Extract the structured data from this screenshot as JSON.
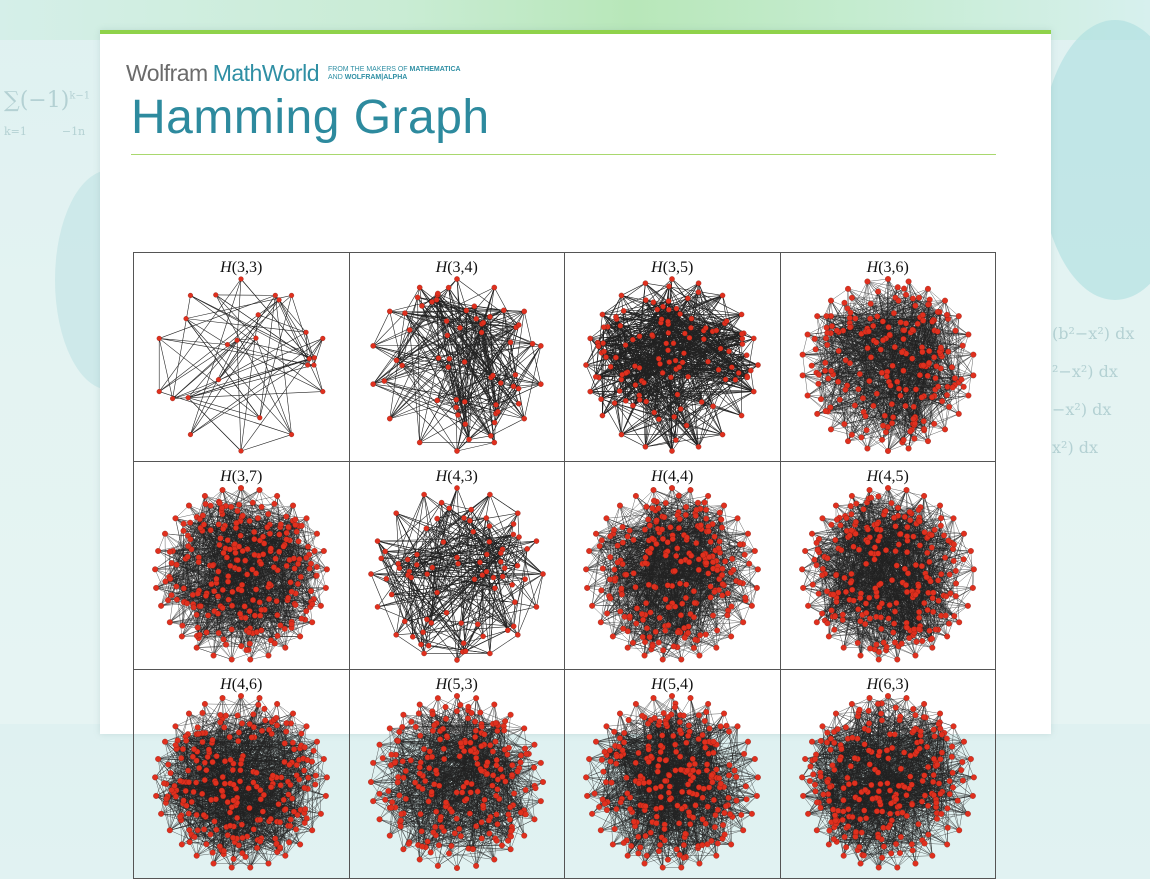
{
  "brand": {
    "wolfram": "Wolfram",
    "mathworld": "MathWorld",
    "tag_line1_pre": "FROM THE MAKERS OF ",
    "tag_line1_bold": "MATHEMATICA",
    "tag_line2_pre": "AND ",
    "tag_line2_bold": "WOLFRAM|ALPHA"
  },
  "page": {
    "title": "Hamming Graph"
  },
  "graphs": [
    {
      "name": "H",
      "args": "(3,3)",
      "d": 3,
      "q": 3
    },
    {
      "name": "H",
      "args": "(3,4)",
      "d": 3,
      "q": 4
    },
    {
      "name": "H",
      "args": "(3,5)",
      "d": 3,
      "q": 5
    },
    {
      "name": "H",
      "args": "(3,6)",
      "d": 3,
      "q": 6
    },
    {
      "name": "H",
      "args": "(3,7)",
      "d": 3,
      "q": 7
    },
    {
      "name": "H",
      "args": "(4,3)",
      "d": 4,
      "q": 3
    },
    {
      "name": "H",
      "args": "(4,4)",
      "d": 4,
      "q": 4
    },
    {
      "name": "H",
      "args": "(4,5)",
      "d": 4,
      "q": 5
    },
    {
      "name": "H",
      "args": "(4,6)",
      "d": 4,
      "q": 6
    },
    {
      "name": "H",
      "args": "(5,3)",
      "d": 5,
      "q": 3
    },
    {
      "name": "H",
      "args": "(5,4)",
      "d": 5,
      "q": 4
    },
    {
      "name": "H",
      "args": "(6,3)",
      "d": 6,
      "q": 3
    }
  ],
  "colors": {
    "accent": "#2d8a9e",
    "rule": "#a9d86e",
    "topbar": "#8fd24a",
    "vertex": "#e0301e",
    "edge": "#222222"
  }
}
